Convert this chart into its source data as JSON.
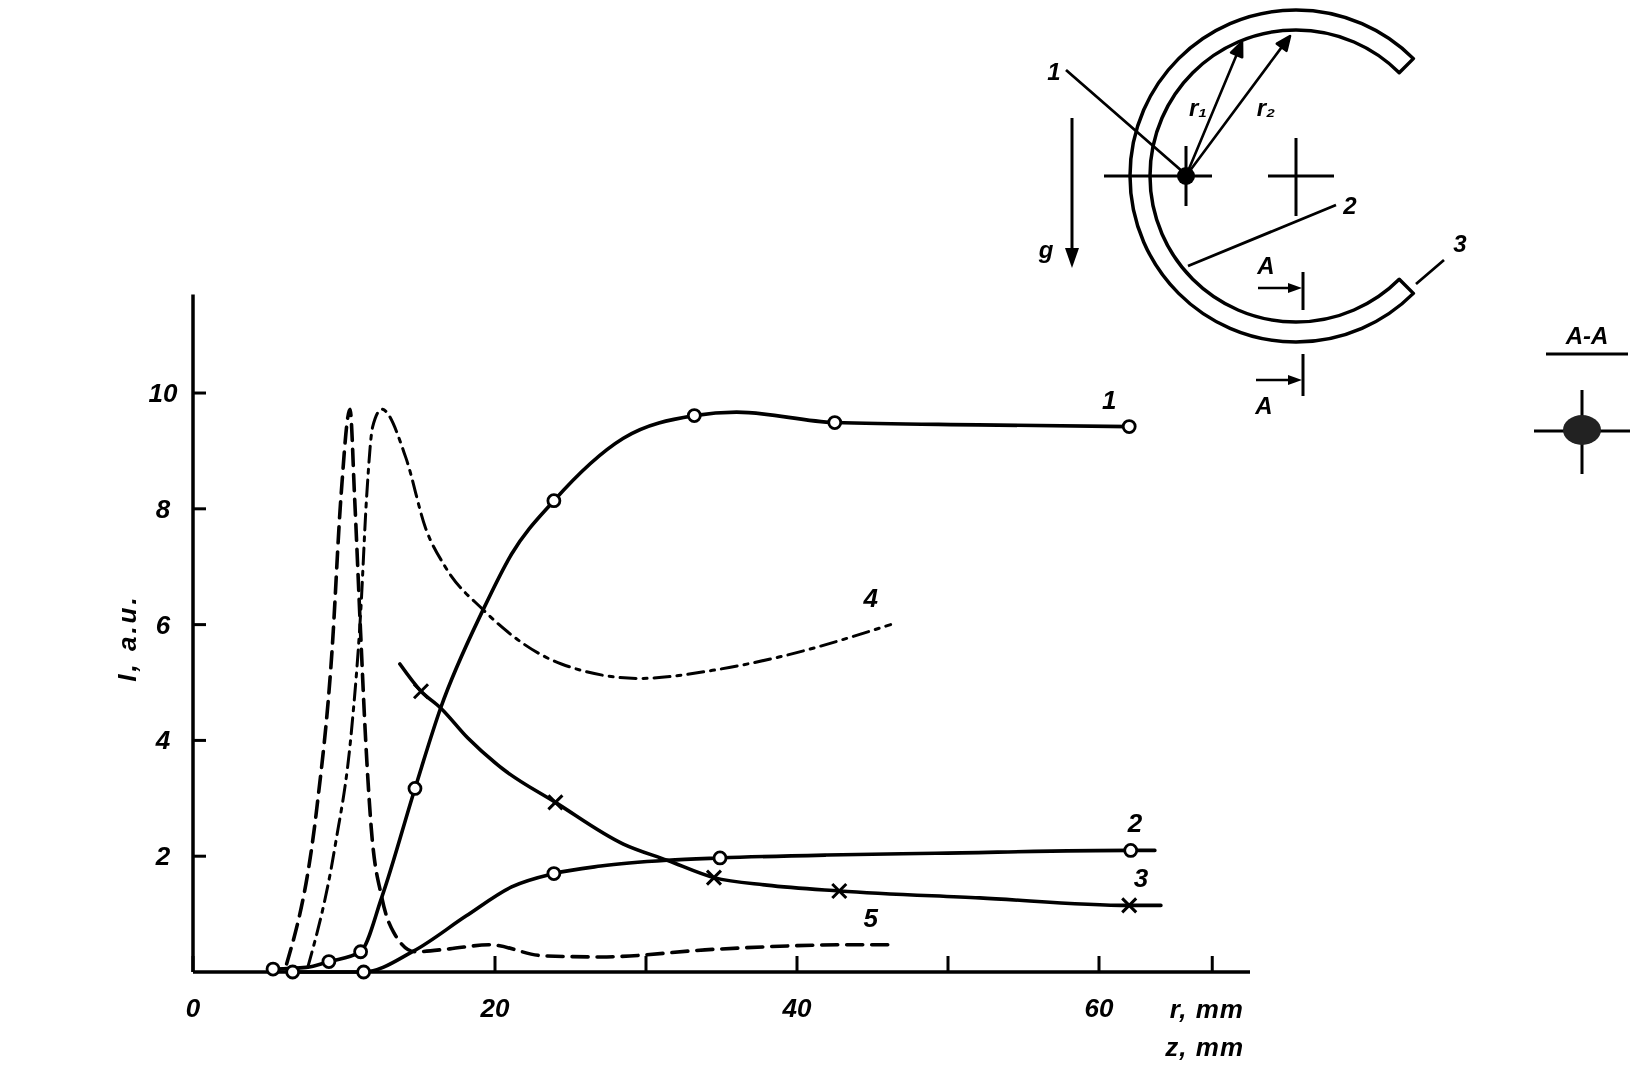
{
  "chart_data": {
    "type": "line",
    "xlabel": "r, mm\nz, mm",
    "ylabel": "I, a.u.",
    "xlim": [
      0,
      70
    ],
    "ylim": [
      0,
      11.7
    ],
    "xticks": [
      0,
      20,
      {
        "value": 30,
        "label": null
      },
      40,
      {
        "value": 50,
        "label": null
      },
      60,
      {
        "value": 67.5,
        "label": null
      }
    ],
    "yticks": [
      2,
      4,
      6,
      8,
      10
    ],
    "annotations": [
      "1",
      "2",
      "3",
      "r₁",
      "r₂",
      "g",
      "A",
      "A",
      "A-A"
    ],
    "series": [
      {
        "name": "1",
        "line_style": "solid",
        "marker": "none",
        "color": "#000000",
        "x": [
          5.3,
          7.5,
          9.0,
          11.1,
          12.5,
          14.7,
          16.4,
          19.2,
          21.1,
          23.9,
          28.5,
          33.2,
          36.0,
          42.5,
          52.0,
          62.0
        ],
        "values": [
          0.05,
          0.08,
          0.18,
          0.35,
          1.29,
          3.17,
          4.56,
          6.25,
          7.22,
          8.14,
          9.22,
          9.61,
          9.67,
          9.49,
          9.45,
          9.42
        ]
      },
      {
        "type": "scatter",
        "marker": "circle",
        "color": "#000000",
        "x": [
          5.3,
          9.0,
          11.1,
          14.7,
          23.9,
          33.2,
          42.5,
          62.0
        ],
        "values": [
          0.05,
          0.18,
          0.35,
          3.17,
          8.14,
          9.61,
          9.49,
          9.42
        ]
      },
      {
        "name": "2",
        "line_style": "solid",
        "marker": "none",
        "color": "#000000",
        "x": [
          6.6,
          11.3,
          14.6,
          18.1,
          21.1,
          23.9,
          27.0,
          31.4,
          34.9,
          42.0,
          49.2,
          62.1,
          63.7
        ],
        "values": [
          0,
          0,
          0.36,
          0.97,
          1.47,
          1.7,
          1.83,
          1.93,
          1.97,
          2.02,
          2.05,
          2.1,
          2.1
        ]
      },
      {
        "type": "scatter",
        "marker": "circle",
        "color": "#000000",
        "x": [
          6.6,
          11.3,
          23.9,
          34.9,
          62.1
        ],
        "values": [
          0,
          0,
          1.7,
          1.97,
          2.1
        ]
      },
      {
        "name": "3",
        "line_style": "solid",
        "marker": "none",
        "color": "#000000",
        "x": [
          13.7,
          15.1,
          16.4,
          18.2,
          20.5,
          24.0,
          28.5,
          31.4,
          34.5,
          38.0,
          42.8,
          52.1,
          62.0,
          64.1
        ],
        "values": [
          5.32,
          4.85,
          4.56,
          4.04,
          3.51,
          2.93,
          2.21,
          1.93,
          1.63,
          1.5,
          1.4,
          1.28,
          1.15,
          1.15
        ]
      },
      {
        "type": "scatter",
        "marker": "cross",
        "color": "#000000",
        "x": [
          15.1,
          24.0,
          34.5,
          42.8,
          62.0
        ],
        "values": [
          4.85,
          2.93,
          1.63,
          1.4,
          1.15
        ]
      },
      {
        "name": "4",
        "line_style": "dashdot",
        "marker": "none",
        "color": "#000000",
        "x": [
          7.6,
          9.4,
          10.5,
          11.1,
          11.5,
          11.9,
          12.5,
          14.1,
          15.4,
          16.7,
          19.2,
          24.4,
          29.6,
          34.4,
          38.8,
          46.2
        ],
        "values": [
          0.08,
          2.16,
          4.18,
          6.19,
          8.21,
          9.42,
          9.72,
          8.88,
          7.67,
          7.0,
          6.26,
          5.32,
          5.07,
          5.21,
          5.44,
          6.0
        ]
      },
      {
        "name": "5",
        "line_style": "dashed",
        "marker": "none",
        "color": "#000000",
        "x": [
          6.2,
          8.2,
          9.2,
          9.8,
          10.4,
          10.7,
          11.1,
          11.4,
          11.8,
          12.5,
          13.3,
          14.7,
          17.0,
          19.6,
          23.2,
          27.0,
          34.4,
          43.3,
          46.2
        ],
        "values": [
          0.14,
          2.83,
          5.52,
          8.21,
          9.72,
          8.21,
          5.86,
          4.18,
          2.5,
          1.29,
          0.68,
          0.35,
          0.4,
          0.47,
          0.28,
          0.26,
          0.39,
          0.47,
          0.47
        ]
      }
    ]
  }
}
